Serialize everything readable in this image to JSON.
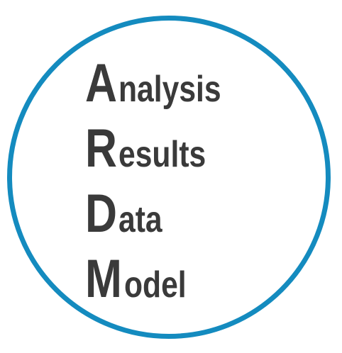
{
  "colors": {
    "ring": "#148bbf",
    "text": "#3a3a3a",
    "background": "#ffffff"
  },
  "lines": [
    {
      "initial": "A",
      "rest": "nalysis"
    },
    {
      "initial": "R",
      "rest": "esults"
    },
    {
      "initial": "D",
      "rest": "ata"
    },
    {
      "initial": "M",
      "rest": "odel"
    }
  ]
}
